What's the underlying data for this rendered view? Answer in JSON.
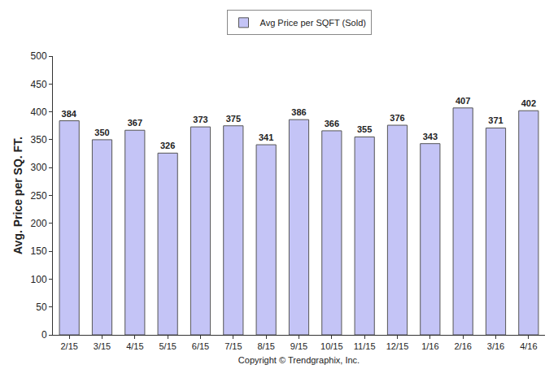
{
  "chart_data": {
    "type": "bar",
    "categories": [
      "2/15",
      "3/15",
      "4/15",
      "5/15",
      "6/15",
      "7/15",
      "8/15",
      "9/15",
      "10/15",
      "11/15",
      "12/15",
      "1/16",
      "2/16",
      "3/16",
      "4/16"
    ],
    "series": [
      {
        "name": "Avg Price per SQFT (Sold)",
        "color": "#c4c4f6",
        "values": [
          384,
          350,
          367,
          326,
          373,
          375,
          341,
          386,
          366,
          355,
          376,
          343,
          407,
          371,
          402
        ]
      }
    ],
    "ylabel": "Avg. Price per SQ. FT.",
    "xlabel": "Copyright © Trendgraphix, Inc.",
    "ylim": [
      0,
      500
    ],
    "yticks": [
      0,
      50,
      100,
      150,
      200,
      250,
      300,
      350,
      400,
      450,
      500
    ],
    "grid": false,
    "legend": "top",
    "data_labels": true
  }
}
